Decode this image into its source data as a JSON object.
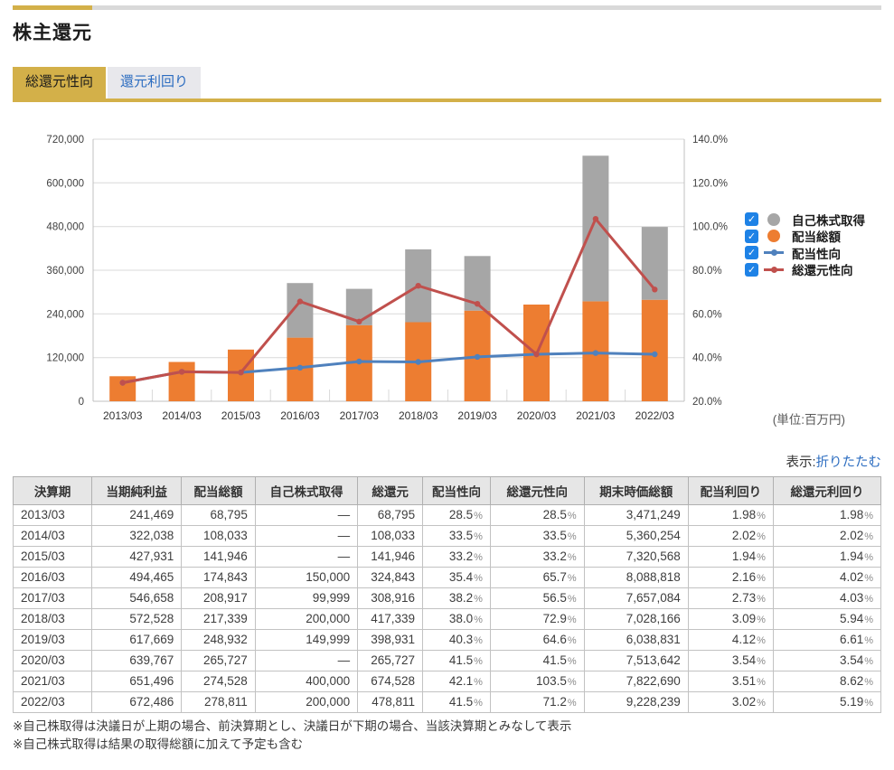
{
  "header": {
    "title": "株主還元"
  },
  "tabs": [
    {
      "label": "総還元性向",
      "active": true
    },
    {
      "label": "還元利回り",
      "active": false
    }
  ],
  "chart": {
    "unit_label": "(単位:百万円)"
  },
  "chart_data": {
    "type": "combo",
    "categories": [
      "2013/03",
      "2014/03",
      "2015/03",
      "2016/03",
      "2017/03",
      "2018/03",
      "2019/03",
      "2020/03",
      "2021/03",
      "2022/03"
    ],
    "series": [
      {
        "name": "配当総額",
        "type": "bar",
        "stack": "bottom",
        "axis": "left",
        "color": "#ed7d31",
        "values": [
          68795,
          108033,
          141946,
          174843,
          208917,
          217339,
          248932,
          265727,
          274528,
          278811
        ]
      },
      {
        "name": "自己株式取得",
        "type": "bar",
        "stack": "top",
        "axis": "left",
        "color": "#a6a6a6",
        "values": [
          0,
          0,
          0,
          150000,
          99999,
          200000,
          149999,
          0,
          400000,
          200000
        ]
      },
      {
        "name": "配当性向",
        "type": "line",
        "axis": "right",
        "color": "#4f81bd",
        "values": [
          28.5,
          33.5,
          33.2,
          35.4,
          38.2,
          38.0,
          40.3,
          41.5,
          42.1,
          41.5
        ]
      },
      {
        "name": "総還元性向",
        "type": "line",
        "axis": "right",
        "color": "#c0504d",
        "values": [
          28.5,
          33.5,
          33.2,
          65.7,
          56.5,
          72.9,
          64.6,
          41.5,
          103.5,
          71.2
        ]
      }
    ],
    "legend_order": [
      1,
      0,
      2,
      3
    ],
    "left_axis": {
      "range": [
        0,
        720000
      ],
      "step": 120000,
      "unit": "百万円"
    },
    "right_axis": {
      "range": [
        20,
        140
      ],
      "step": 20,
      "format": "percent"
    },
    "grid": true,
    "legend_position": "right",
    "legend_checkboxes_checked": [
      true,
      true,
      true,
      true
    ]
  },
  "display_toggle": {
    "prefix": "表示:",
    "link": "折りたたむ"
  },
  "table": {
    "columns": [
      {
        "label": "決算期",
        "width": "9.1%",
        "align": "left"
      },
      {
        "label": "当期純利益",
        "width": "10.3%"
      },
      {
        "label": "配当総額",
        "width": "8.5%"
      },
      {
        "label": "自己株式取得",
        "width": "11.8%"
      },
      {
        "label": "総還元",
        "width": "7.5%"
      },
      {
        "label": "配当性向",
        "width": "7.8%"
      },
      {
        "label": "総還元性向",
        "width": "10.8%"
      },
      {
        "label": "期末時価総額",
        "width": "12.0%"
      },
      {
        "label": "配当利回り",
        "width": "9.8%"
      },
      {
        "label": "総還元利回り",
        "width": "12.4%"
      }
    ],
    "rows": [
      [
        "2013/03",
        "241,469",
        "68,795",
        "—",
        "68,795",
        "28.5%",
        "28.5%",
        "3,471,249",
        "1.98%",
        "1.98%"
      ],
      [
        "2014/03",
        "322,038",
        "108,033",
        "—",
        "108,033",
        "33.5%",
        "33.5%",
        "5,360,254",
        "2.02%",
        "2.02%"
      ],
      [
        "2015/03",
        "427,931",
        "141,946",
        "—",
        "141,946",
        "33.2%",
        "33.2%",
        "7,320,568",
        "1.94%",
        "1.94%"
      ],
      [
        "2016/03",
        "494,465",
        "174,843",
        "150,000",
        "324,843",
        "35.4%",
        "65.7%",
        "8,088,818",
        "2.16%",
        "4.02%"
      ],
      [
        "2017/03",
        "546,658",
        "208,917",
        "99,999",
        "308,916",
        "38.2%",
        "56.5%",
        "7,657,084",
        "2.73%",
        "4.03%"
      ],
      [
        "2018/03",
        "572,528",
        "217,339",
        "200,000",
        "417,339",
        "38.0%",
        "72.9%",
        "7,028,166",
        "3.09%",
        "5.94%"
      ],
      [
        "2019/03",
        "617,669",
        "248,932",
        "149,999",
        "398,931",
        "40.3%",
        "64.6%",
        "6,038,831",
        "4.12%",
        "6.61%"
      ],
      [
        "2020/03",
        "639,767",
        "265,727",
        "—",
        "265,727",
        "41.5%",
        "41.5%",
        "7,513,642",
        "3.54%",
        "3.54%"
      ],
      [
        "2021/03",
        "651,496",
        "274,528",
        "400,000",
        "674,528",
        "42.1%",
        "103.5%",
        "7,822,690",
        "3.51%",
        "8.62%"
      ],
      [
        "2022/03",
        "672,486",
        "278,811",
        "200,000",
        "478,811",
        "41.5%",
        "71.2%",
        "9,228,239",
        "3.02%",
        "5.19%"
      ]
    ]
  },
  "notes": [
    "※自己株取得は決議日が上期の場合、前決算期とし、決議日が下期の場合、当該決算期とみなして表示",
    "※自己株式取得は結果の取得総額に加えて予定も含む"
  ],
  "colors": {
    "accent_gold": "#d3b049",
    "topbar_gray": "#d9d9d9",
    "link_blue": "#2b6cc0",
    "checkbox_blue": "#1e82e6",
    "bar_orange": "#ed7d31",
    "bar_gray": "#a6a6a6",
    "line_blue": "#4f81bd",
    "line_red": "#c0504d",
    "table_header_bg": "#e6e6e6"
  }
}
